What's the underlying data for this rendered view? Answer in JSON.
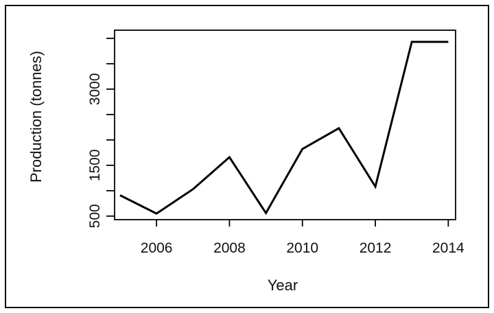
{
  "chart_data": {
    "type": "line",
    "title": "",
    "xlabel": "Year",
    "ylabel": "Production (tonnes)",
    "x": [
      2005,
      2006,
      2007,
      2008,
      2009,
      2010,
      2011,
      2012,
      2013,
      2014
    ],
    "y": [
      910,
      550,
      1030,
      1660,
      560,
      1820,
      2230,
      1080,
      3930,
      3930
    ],
    "xticks": [
      "2006",
      "2008",
      "2010",
      "2012",
      "2014"
    ],
    "yticks": [
      "500",
      "1500",
      "3000"
    ],
    "xlim": [
      2004.85,
      2014.2
    ],
    "ylim": [
      430,
      4160
    ],
    "grid": false,
    "legend": "none",
    "line_color": "#000000"
  }
}
